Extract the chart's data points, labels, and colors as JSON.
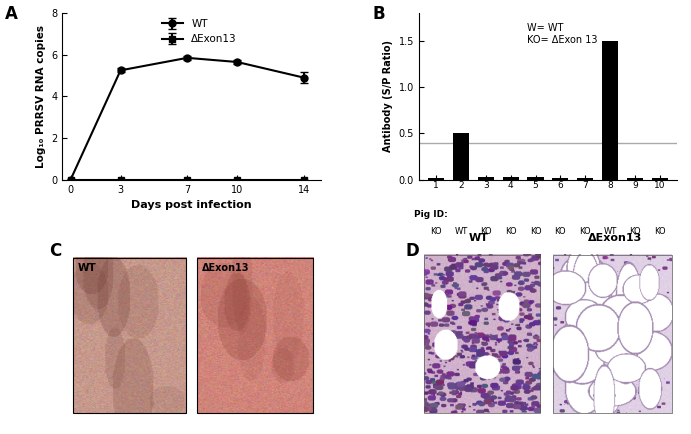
{
  "panel_A": {
    "label": "A",
    "wt_x": [
      0,
      3,
      7,
      10,
      14
    ],
    "wt_y": [
      0.0,
      5.25,
      5.85,
      5.65,
      4.9
    ],
    "wt_err": [
      0.0,
      0.1,
      0.08,
      0.1,
      0.25
    ],
    "ko_x": [
      0,
      3,
      7,
      10,
      14
    ],
    "ko_y": [
      0.0,
      0.0,
      0.0,
      0.0,
      0.0
    ],
    "ko_err": [
      0.0,
      0.0,
      0.0,
      0.0,
      0.0
    ],
    "xlabel": "Days post infection",
    "ylabel": "Log₁₀ PRRSV RNA copies",
    "ylim": [
      0,
      8
    ],
    "yticks": [
      0,
      2,
      4,
      6,
      8
    ],
    "xticks": [
      0,
      3,
      7,
      10,
      14
    ],
    "legend_wt": "WT",
    "legend_ko": "ΔExon13"
  },
  "panel_B": {
    "label": "B",
    "pig_ids": [
      1,
      2,
      3,
      4,
      5,
      6,
      7,
      8,
      9,
      10
    ],
    "values": [
      0.02,
      0.5,
      0.03,
      0.03,
      0.03,
      0.02,
      0.02,
      1.5,
      0.02,
      0.02
    ],
    "pig_labels": [
      "KO",
      "WT",
      "KO",
      "KO",
      "KO",
      "KO",
      "KO",
      "WT",
      "KO",
      "KO"
    ],
    "xlabel": "Pig ID:",
    "ylabel": "Antibody (S/P Ratio)",
    "ylim": [
      0,
      1.8
    ],
    "yticks": [
      0.0,
      0.5,
      1.0,
      1.5
    ],
    "threshold": 0.4,
    "annotation": "W= WT\nKO= ΔExon 13",
    "bar_color": "#000000",
    "threshold_color": "#aaaaaa"
  },
  "panel_C": {
    "label": "C",
    "wt_label": "WT",
    "ko_label": "ΔExon13",
    "wt_bg": [
      0.85,
      0.72,
      0.68
    ],
    "ko_bg": [
      0.88,
      0.62,
      0.58
    ]
  },
  "panel_D": {
    "label": "D",
    "wt_label": "WT",
    "ko_label": "ΔExon13",
    "wt_bg": [
      0.82,
      0.72,
      0.8
    ],
    "ko_bg": [
      0.85,
      0.76,
      0.85
    ]
  },
  "bg_color": "#ffffff",
  "line_color": "#000000",
  "marker_color": "#000000"
}
